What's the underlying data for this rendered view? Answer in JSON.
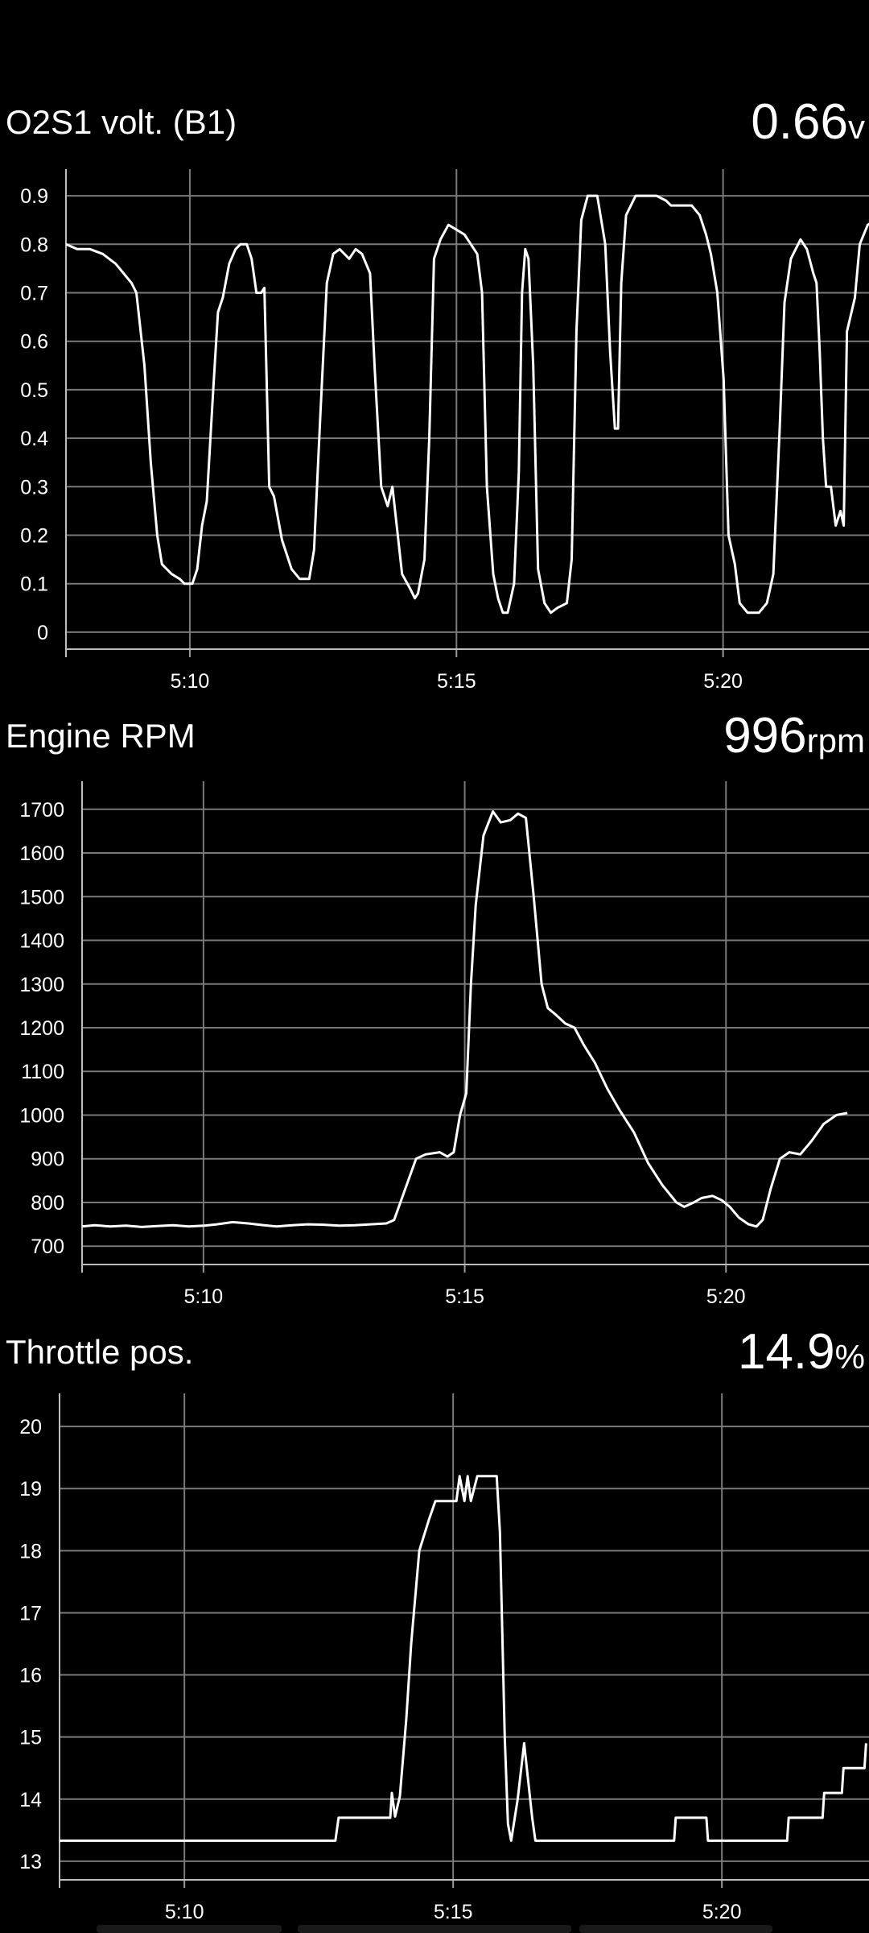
{
  "panels": [
    {
      "title": "O2S1 volt. (B1)",
      "current_value": "0.66",
      "unit": "v"
    },
    {
      "title": "Engine RPM",
      "current_value": "996",
      "unit": "rpm"
    },
    {
      "title": "Throttle pos.",
      "current_value": "14.9",
      "unit": "%"
    }
  ],
  "chart_data": [
    {
      "type": "line",
      "title": "O2S1 volt. (B1)",
      "xlabel": "",
      "ylabel": "",
      "x_unit": "minutes",
      "x_ticks": [
        5.1667,
        5.25,
        5.3333
      ],
      "x_tick_labels": [
        "5:10",
        "5:15",
        "5:20"
      ],
      "xlim": [
        5.128,
        5.3789
      ],
      "y_ticks": [
        0,
        0.1,
        0.2,
        0.3,
        0.4,
        0.5,
        0.6,
        0.7,
        0.8,
        0.9
      ],
      "y_tick_labels": [
        "0",
        "0.1",
        "0.2",
        "0.3",
        "0.4",
        "0.5",
        "0.6",
        "0.7",
        "0.8",
        "0.9"
      ],
      "ylim": [
        -0.035,
        0.935
      ],
      "grid": true,
      "series": [
        {
          "points": [
            [
              5.128,
              0.8
            ],
            [
              5.1315,
              0.79
            ],
            [
              5.1355,
              0.79
            ],
            [
              5.1395,
              0.78
            ],
            [
              5.1435,
              0.76
            ],
            [
              5.146,
              0.74
            ],
            [
              5.1485,
              0.72
            ],
            [
              5.15,
              0.7
            ],
            [
              5.1525,
              0.55
            ],
            [
              5.1545,
              0.35
            ],
            [
              5.1565,
              0.2
            ],
            [
              5.158,
              0.14
            ],
            [
              5.161,
              0.12
            ],
            [
              5.1635,
              0.11
            ],
            [
              5.165,
              0.1
            ],
            [
              5.1675,
              0.1
            ],
            [
              5.169,
              0.13
            ],
            [
              5.1705,
              0.22
            ],
            [
              5.172,
              0.27
            ],
            [
              5.174,
              0.5
            ],
            [
              5.1755,
              0.66
            ],
            [
              5.177,
              0.69
            ],
            [
              5.179,
              0.76
            ],
            [
              5.181,
              0.79
            ],
            [
              5.1825,
              0.8
            ],
            [
              5.1845,
              0.8
            ],
            [
              5.186,
              0.77
            ],
            [
              5.1875,
              0.7
            ],
            [
              5.189,
              0.7
            ],
            [
              5.19,
              0.71
            ],
            [
              5.1915,
              0.3
            ],
            [
              5.193,
              0.28
            ],
            [
              5.1955,
              0.19
            ],
            [
              5.1985,
              0.13
            ],
            [
              5.201,
              0.11
            ],
            [
              5.204,
              0.11
            ],
            [
              5.2055,
              0.17
            ],
            [
              5.2075,
              0.45
            ],
            [
              5.2095,
              0.72
            ],
            [
              5.2115,
              0.78
            ],
            [
              5.2135,
              0.79
            ],
            [
              5.2165,
              0.77
            ],
            [
              5.2185,
              0.79
            ],
            [
              5.2205,
              0.78
            ],
            [
              5.223,
              0.74
            ],
            [
              5.2245,
              0.54
            ],
            [
              5.2265,
              0.3
            ],
            [
              5.2285,
              0.26
            ],
            [
              5.23,
              0.3
            ],
            [
              5.2315,
              0.21
            ],
            [
              5.233,
              0.12
            ],
            [
              5.2355,
              0.09
            ],
            [
              5.237,
              0.07
            ],
            [
              5.238,
              0.08
            ],
            [
              5.24,
              0.15
            ],
            [
              5.2415,
              0.4
            ],
            [
              5.243,
              0.77
            ],
            [
              5.245,
              0.81
            ],
            [
              5.2475,
              0.84
            ],
            [
              5.25,
              0.83
            ],
            [
              5.2525,
              0.82
            ],
            [
              5.2545,
              0.8
            ],
            [
              5.2565,
              0.78
            ],
            [
              5.258,
              0.7
            ],
            [
              5.2595,
              0.3
            ],
            [
              5.2615,
              0.12
            ],
            [
              5.263,
              0.07
            ],
            [
              5.2645,
              0.04
            ],
            [
              5.266,
              0.04
            ],
            [
              5.268,
              0.1
            ],
            [
              5.2695,
              0.33
            ],
            [
              5.2705,
              0.7
            ],
            [
              5.2715,
              0.79
            ],
            [
              5.2725,
              0.77
            ],
            [
              5.274,
              0.55
            ],
            [
              5.2755,
              0.13
            ],
            [
              5.2775,
              0.06
            ],
            [
              5.2795,
              0.04
            ],
            [
              5.2815,
              0.05
            ],
            [
              5.2845,
              0.06
            ],
            [
              5.286,
              0.15
            ],
            [
              5.2875,
              0.62
            ],
            [
              5.289,
              0.85
            ],
            [
              5.291,
              0.9
            ],
            [
              5.294,
              0.9
            ],
            [
              5.2965,
              0.8
            ],
            [
              5.298,
              0.58
            ],
            [
              5.2995,
              0.42
            ],
            [
              5.3005,
              0.42
            ],
            [
              5.3015,
              0.72
            ],
            [
              5.303,
              0.86
            ],
            [
              5.306,
              0.9
            ],
            [
              5.3095,
              0.9
            ],
            [
              5.3125,
              0.9
            ],
            [
              5.3155,
              0.89
            ],
            [
              5.317,
              0.88
            ],
            [
              5.3205,
              0.88
            ],
            [
              5.3235,
              0.88
            ],
            [
              5.326,
              0.86
            ],
            [
              5.328,
              0.82
            ],
            [
              5.3295,
              0.78
            ],
            [
              5.3315,
              0.7
            ],
            [
              5.3335,
              0.52
            ],
            [
              5.335,
              0.2
            ],
            [
              5.337,
              0.14
            ],
            [
              5.3385,
              0.06
            ],
            [
              5.341,
              0.04
            ],
            [
              5.3445,
              0.04
            ],
            [
              5.347,
              0.06
            ],
            [
              5.349,
              0.12
            ],
            [
              5.351,
              0.42
            ],
            [
              5.3525,
              0.68
            ],
            [
              5.3545,
              0.77
            ],
            [
              5.3575,
              0.81
            ],
            [
              5.3595,
              0.79
            ],
            [
              5.3615,
              0.74
            ],
            [
              5.3625,
              0.72
            ],
            [
              5.3635,
              0.58
            ],
            [
              5.3645,
              0.4
            ],
            [
              5.3655,
              0.3
            ],
            [
              5.367,
              0.3
            ],
            [
              5.3685,
              0.22
            ],
            [
              5.37,
              0.25
            ],
            [
              5.371,
              0.22
            ],
            [
              5.372,
              0.62
            ],
            [
              5.3745,
              0.69
            ],
            [
              5.376,
              0.8
            ],
            [
              5.3785,
              0.84
            ],
            [
              5.381,
              0.85
            ],
            [
              5.3845,
              0.84
            ],
            [
              5.386,
              0.8
            ],
            [
              5.3885,
              0.72
            ],
            [
              5.39,
              0.66
            ]
          ]
        }
      ]
    },
    {
      "type": "line",
      "title": "Engine RPM",
      "xlabel": "",
      "ylabel": "",
      "x_unit": "minutes",
      "x_ticks": [
        5.1667,
        5.25,
        5.3333
      ],
      "x_tick_labels": [
        "5:10",
        "5:15",
        "5:20"
      ],
      "xlim": [
        5.128,
        5.3789
      ],
      "y_ticks": [
        700,
        800,
        900,
        1000,
        1100,
        1200,
        1300,
        1400,
        1500,
        1600,
        1700
      ],
      "y_tick_labels": [
        "700",
        "800",
        "900",
        "1000",
        "1100",
        "1200",
        "1300",
        "1400",
        "1500",
        "1600",
        "1700"
      ],
      "ylim": [
        658,
        1742
      ],
      "grid": true,
      "series": [
        {
          "points": [
            [
              5.128,
              745
            ],
            [
              5.132,
              748
            ],
            [
              5.137,
              745
            ],
            [
              5.142,
              747
            ],
            [
              5.147,
              744
            ],
            [
              5.152,
              746
            ],
            [
              5.157,
              748
            ],
            [
              5.162,
              745
            ],
            [
              5.167,
              747
            ],
            [
              5.171,
              750
            ],
            [
              5.176,
              755
            ],
            [
              5.181,
              752
            ],
            [
              5.186,
              748
            ],
            [
              5.19,
              745
            ],
            [
              5.195,
              748
            ],
            [
              5.2,
              750
            ],
            [
              5.205,
              749
            ],
            [
              5.21,
              747
            ],
            [
              5.215,
              748
            ],
            [
              5.22,
              750
            ],
            [
              5.225,
              752
            ],
            [
              5.2275,
              760
            ],
            [
              5.2295,
              800
            ],
            [
              5.2325,
              860
            ],
            [
              5.2345,
              900
            ],
            [
              5.2375,
              910
            ],
            [
              5.242,
              915
            ],
            [
              5.2445,
              905
            ],
            [
              5.2465,
              915
            ],
            [
              5.2485,
              1000
            ],
            [
              5.2505,
              1050
            ],
            [
              5.252,
              1300
            ],
            [
              5.2535,
              1480
            ],
            [
              5.256,
              1640
            ],
            [
              5.259,
              1695
            ],
            [
              5.2615,
              1670
            ],
            [
              5.2645,
              1675
            ],
            [
              5.267,
              1690
            ],
            [
              5.2695,
              1680
            ],
            [
              5.272,
              1500
            ],
            [
              5.2745,
              1300
            ],
            [
              5.2765,
              1245
            ],
            [
              5.279,
              1230
            ],
            [
              5.282,
              1210
            ],
            [
              5.285,
              1200
            ],
            [
              5.288,
              1160
            ],
            [
              5.2915,
              1120
            ],
            [
              5.2955,
              1060
            ],
            [
              5.2995,
              1010
            ],
            [
              5.304,
              960
            ],
            [
              5.3085,
              890
            ],
            [
              5.313,
              840
            ],
            [
              5.3175,
              800
            ],
            [
              5.32,
              790
            ],
            [
              5.323,
              800
            ],
            [
              5.3255,
              810
            ],
            [
              5.329,
              815
            ],
            [
              5.332,
              805
            ],
            [
              5.3345,
              790
            ],
            [
              5.3375,
              765
            ],
            [
              5.3405,
              750
            ],
            [
              5.343,
              745
            ],
            [
              5.345,
              760
            ],
            [
              5.3475,
              830
            ],
            [
              5.3505,
              900
            ],
            [
              5.3535,
              915
            ],
            [
              5.357,
              910
            ],
            [
              5.3605,
              940
            ],
            [
              5.3645,
              980
            ],
            [
              5.3685,
              1000
            ],
            [
              5.372,
              1005
            ]
          ]
        }
      ]
    },
    {
      "type": "line",
      "title": "Throttle pos.",
      "xlabel": "",
      "ylabel": "",
      "x_unit": "minutes",
      "x_ticks": [
        5.1667,
        5.25,
        5.3333
      ],
      "x_tick_labels": [
        "5:10",
        "5:15",
        "5:20"
      ],
      "xlim": [
        5.128,
        5.3789
      ],
      "y_ticks": [
        13,
        14,
        15,
        16,
        17,
        18,
        19,
        20
      ],
      "y_tick_labels": [
        "13",
        "14",
        "15",
        "16",
        "17",
        "18",
        "19",
        "20"
      ],
      "ylim": [
        12.7,
        20.3
      ],
      "grid": true,
      "series": [
        {
          "points": [
            [
              5.128,
              13.33
            ],
            [
              5.2135,
              13.33
            ],
            [
              5.2145,
              13.7
            ],
            [
              5.2305,
              13.7
            ],
            [
              5.231,
              14.1
            ],
            [
              5.232,
              13.72
            ],
            [
              5.2335,
              14.05
            ],
            [
              5.2355,
              15.3
            ],
            [
              5.237,
              16.5
            ],
            [
              5.2395,
              18.0
            ],
            [
              5.2425,
              18.5
            ],
            [
              5.2445,
              18.8
            ],
            [
              5.251,
              18.8
            ],
            [
              5.252,
              19.2
            ],
            [
              5.2535,
              18.8
            ],
            [
              5.2545,
              19.2
            ],
            [
              5.2555,
              18.8
            ],
            [
              5.2575,
              19.2
            ],
            [
              5.2635,
              19.2
            ],
            [
              5.2645,
              18.3
            ],
            [
              5.266,
              15.0
            ],
            [
              5.267,
              13.6
            ],
            [
              5.268,
              13.33
            ],
            [
              5.27,
              14.0
            ],
            [
              5.272,
              14.9
            ],
            [
              5.2745,
              13.7
            ],
            [
              5.2755,
              13.33
            ],
            [
              5.3185,
              13.33
            ],
            [
              5.319,
              13.7
            ],
            [
              5.3285,
              13.7
            ],
            [
              5.329,
              13.33
            ],
            [
              5.3535,
              13.33
            ],
            [
              5.354,
              13.7
            ],
            [
              5.3645,
              13.7
            ],
            [
              5.365,
              14.1
            ],
            [
              5.3705,
              14.1
            ],
            [
              5.371,
              14.5
            ],
            [
              5.3775,
              14.5
            ],
            [
              5.378,
              14.9
            ]
          ]
        }
      ]
    }
  ]
}
